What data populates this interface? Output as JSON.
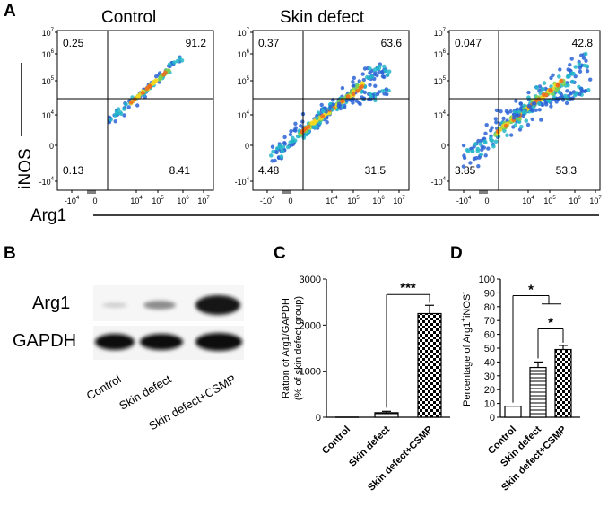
{
  "panels": {
    "A": {
      "letter": "A",
      "titles": [
        "Control",
        "Skin defect"
      ],
      "y_axis_label": "iNOS",
      "x_axis_label": "Arg1",
      "y_ticks": [
        "10^7",
        "10^6",
        "10^5",
        "10^4",
        "0",
        "-10^4"
      ],
      "x_ticks": [
        "-10^4",
        "0",
        "10^4",
        "10^5",
        "10^6",
        "10^7"
      ],
      "plots": [
        {
          "title": "Control",
          "quadrants": {
            "upper_left": "0.25",
            "upper_right": "91.2",
            "lower_left": "0.13",
            "lower_right": "8.41"
          }
        },
        {
          "title": "Skin defect",
          "quadrants": {
            "upper_left": "0.37",
            "upper_right": "63.6",
            "lower_left": "4.48",
            "lower_right": "31.5"
          }
        },
        {
          "title": "",
          "quadrants": {
            "upper_left": "0.047",
            "upper_right": "42.8",
            "lower_left": "3.85",
            "lower_right": "53.3"
          }
        }
      ]
    },
    "B": {
      "letter": "B",
      "row_labels": [
        "Arg1",
        "GAPDH"
      ],
      "lane_labels": [
        "Control",
        "Skin defect",
        "Skin defect+CSMP"
      ]
    },
    "C": {
      "letter": "C"
    },
    "D": {
      "letter": "D"
    }
  },
  "chart_data": [
    {
      "panel": "C",
      "type": "bar",
      "categories": [
        "Control",
        "Skin defect",
        "Skin defect+CSMP"
      ],
      "values": [
        0,
        100,
        2250
      ],
      "errors": [
        0,
        30,
        180
      ],
      "ylabel": "Ration of Arg1/GAPDH",
      "ylabel2": "(% of skin defect group)",
      "ylim": [
        0,
        3000
      ],
      "yticks": [
        0,
        1000,
        2000,
        3000
      ],
      "significance": [
        {
          "from": 1,
          "to": 2,
          "label": "***"
        }
      ]
    },
    {
      "panel": "D",
      "type": "bar",
      "categories": [
        "Control",
        "Skin defect",
        "Skin defect+CSMP"
      ],
      "values": [
        8,
        36,
        49
      ],
      "errors": [
        0,
        4,
        3
      ],
      "ylabel": "Percentage of Arg1⁺iNOS⁻",
      "ylim": [
        0,
        100
      ],
      "yticks": [
        0,
        10,
        20,
        30,
        40,
        50,
        60,
        70,
        80,
        90,
        100
      ],
      "significance": [
        {
          "from": 0,
          "to": "1-2",
          "label": "*"
        },
        {
          "from": 1,
          "to": 2,
          "label": "*"
        }
      ]
    }
  ]
}
